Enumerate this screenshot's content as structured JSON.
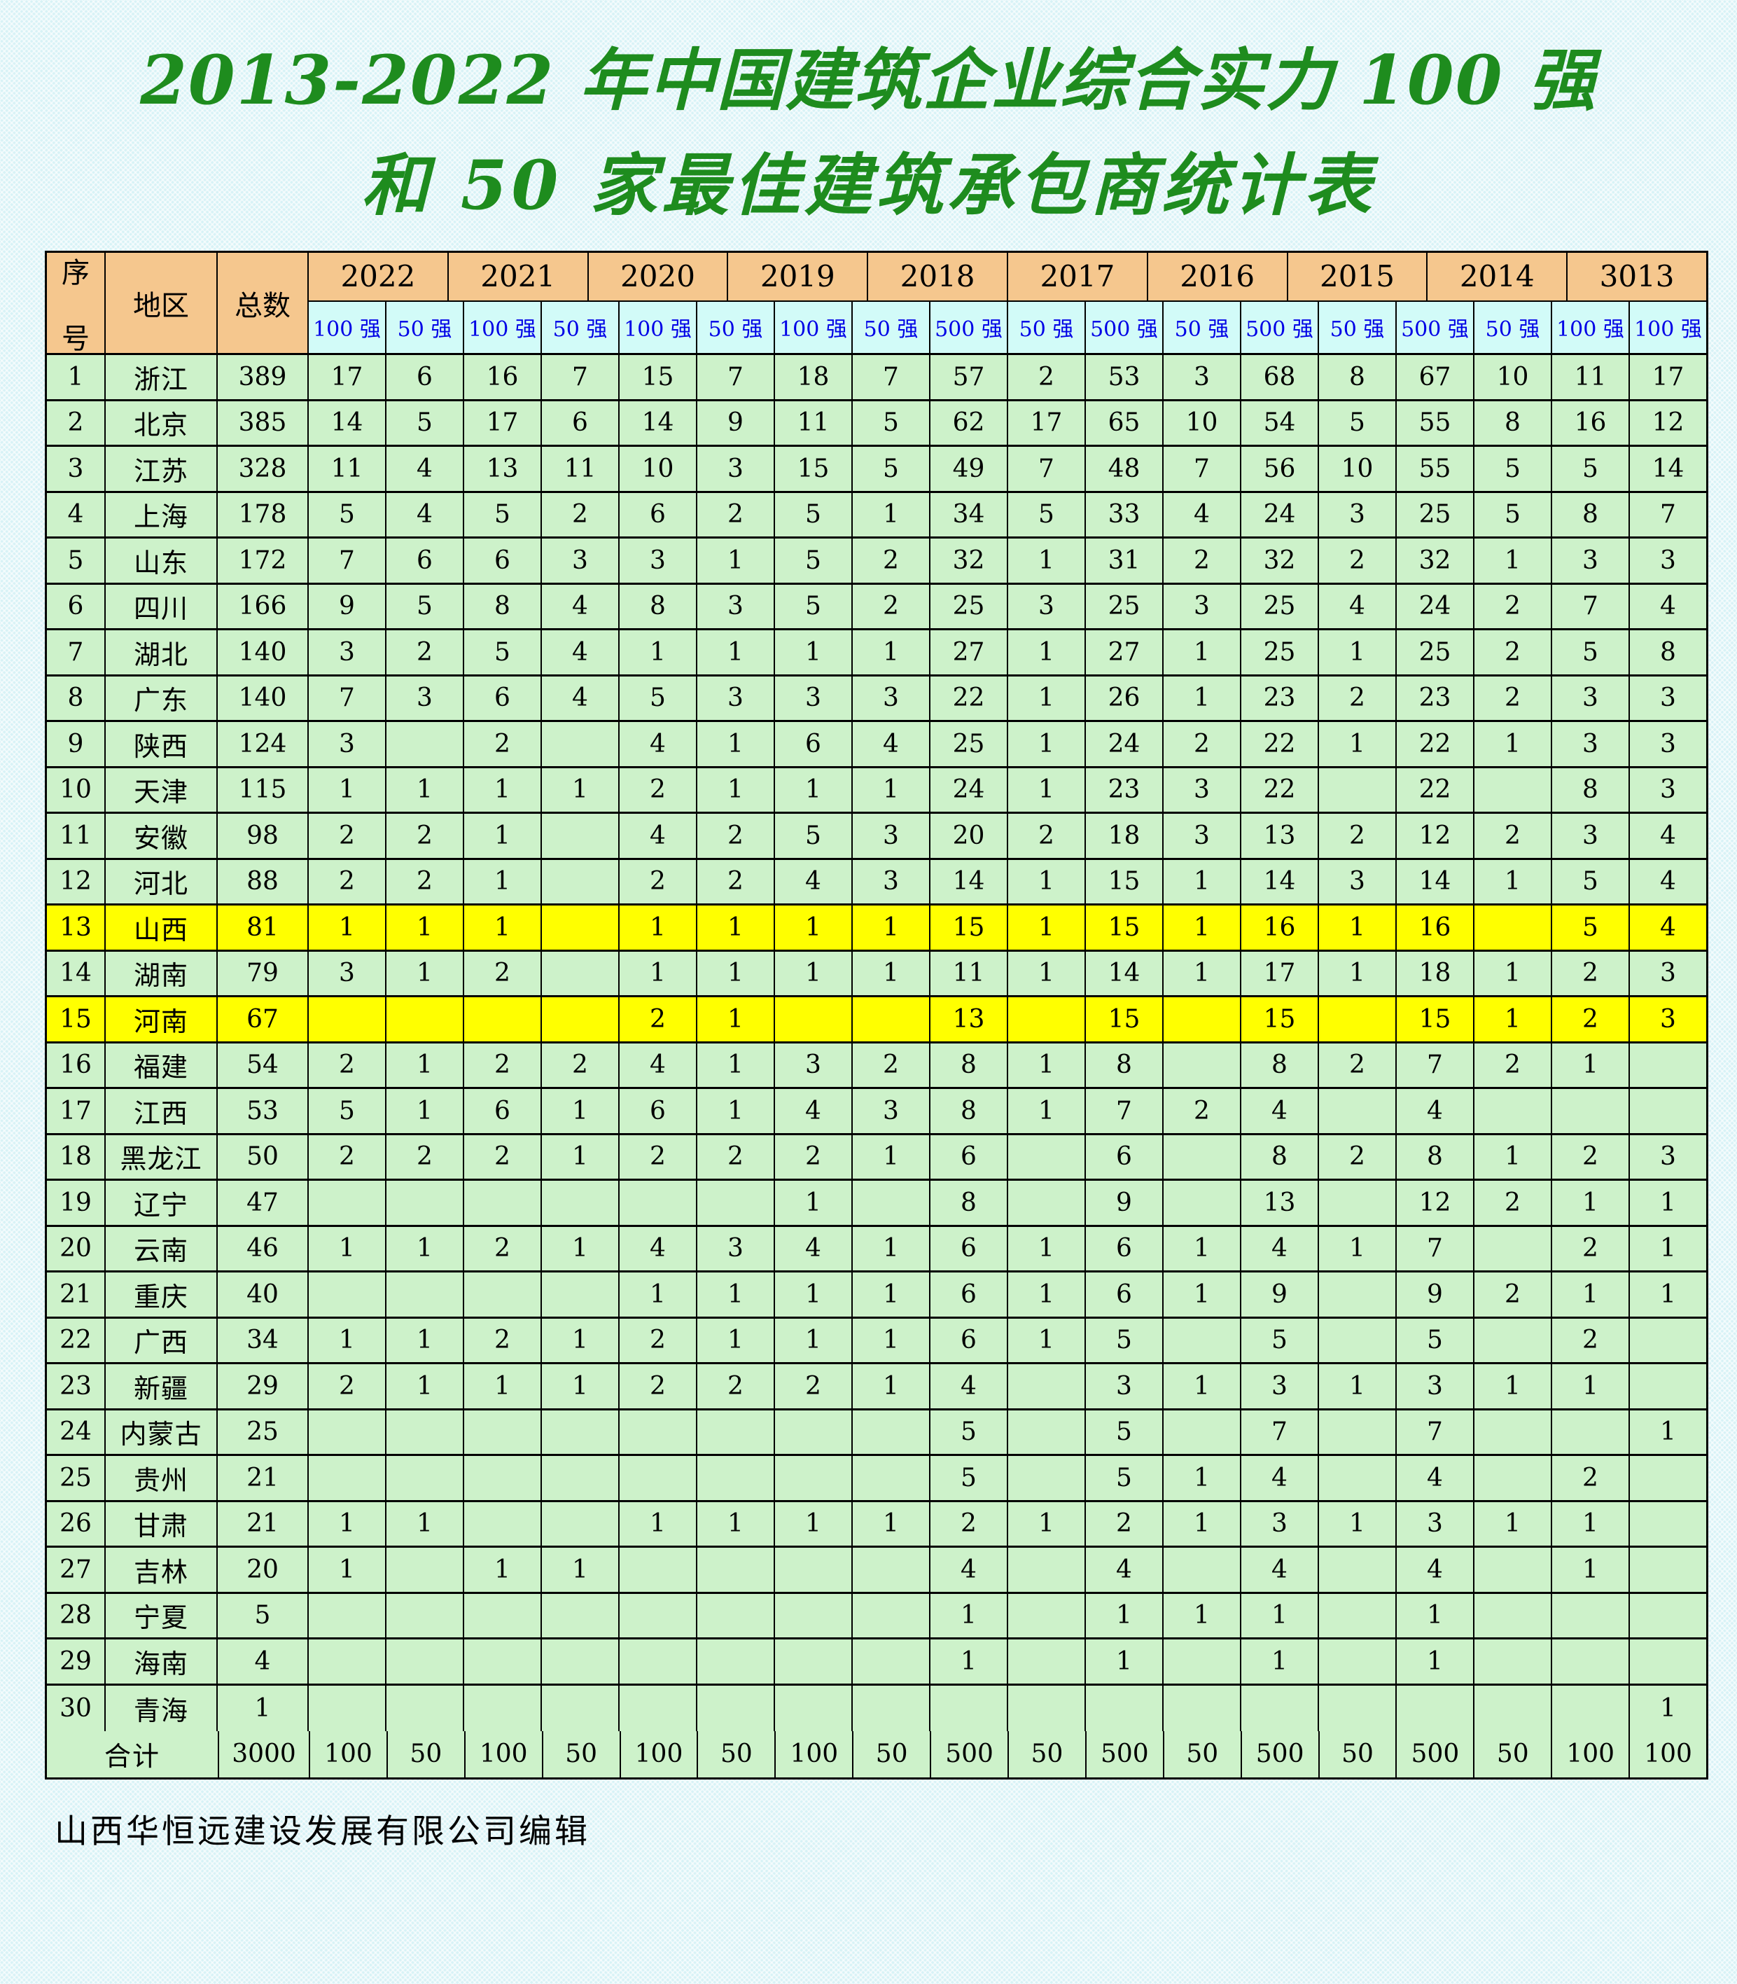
{
  "title": {
    "line1": "2013-2022 年中国建筑企业综合实力 100 强",
    "line2": "和 50 家最佳建筑承包商统计表"
  },
  "footer": "山西华恒远建设发展有限公司编辑",
  "colors": {
    "page_bg": "#d7f2f6",
    "header_bg": "#f5c78e",
    "subheader_bg": "#d2fbf8",
    "subheader_text": "#0000e6",
    "body_bg": "#cdf2ca",
    "highlight_bg": "#ffff00",
    "title_color": "#1e8c1e",
    "grid": "#000000"
  },
  "table": {
    "corner": {
      "seq_char1": "序",
      "seq_char2": "号",
      "region": "地区",
      "total": "总数"
    },
    "years": [
      "2022",
      "2021",
      "2020",
      "2019",
      "2018",
      "2017",
      "2016",
      "2015",
      "2014",
      "3013"
    ],
    "sub_headers": [
      "100 强",
      "50 强",
      "100 强",
      "50 强",
      "100 强",
      "50 强",
      "100 强",
      "50 强",
      "500 强",
      "50 强",
      "500 强",
      "50 强",
      "500 强",
      "50 强",
      "500 强",
      "50 强",
      "100 强",
      "100 强"
    ],
    "rows": [
      {
        "no": "1",
        "region": "浙江",
        "total": "389",
        "highlight": false,
        "values": [
          "17",
          "6",
          "16",
          "7",
          "15",
          "7",
          "18",
          "7",
          "57",
          "2",
          "53",
          "3",
          "68",
          "8",
          "67",
          "10",
          "11",
          "17"
        ]
      },
      {
        "no": "2",
        "region": "北京",
        "total": "385",
        "highlight": false,
        "values": [
          "14",
          "5",
          "17",
          "6",
          "14",
          "9",
          "11",
          "5",
          "62",
          "17",
          "65",
          "10",
          "54",
          "5",
          "55",
          "8",
          "16",
          "12"
        ]
      },
      {
        "no": "3",
        "region": "江苏",
        "total": "328",
        "highlight": false,
        "values": [
          "11",
          "4",
          "13",
          "11",
          "10",
          "3",
          "15",
          "5",
          "49",
          "7",
          "48",
          "7",
          "56",
          "10",
          "55",
          "5",
          "5",
          "14"
        ]
      },
      {
        "no": "4",
        "region": "上海",
        "total": "178",
        "highlight": false,
        "values": [
          "5",
          "4",
          "5",
          "2",
          "6",
          "2",
          "5",
          "1",
          "34",
          "5",
          "33",
          "4",
          "24",
          "3",
          "25",
          "5",
          "8",
          "7"
        ]
      },
      {
        "no": "5",
        "region": "山东",
        "total": "172",
        "highlight": false,
        "values": [
          "7",
          "6",
          "6",
          "3",
          "3",
          "1",
          "5",
          "2",
          "32",
          "1",
          "31",
          "2",
          "32",
          "2",
          "32",
          "1",
          "3",
          "3"
        ]
      },
      {
        "no": "6",
        "region": "四川",
        "total": "166",
        "highlight": false,
        "values": [
          "9",
          "5",
          "8",
          "4",
          "8",
          "3",
          "5",
          "2",
          "25",
          "3",
          "25",
          "3",
          "25",
          "4",
          "24",
          "2",
          "7",
          "4"
        ]
      },
      {
        "no": "7",
        "region": "湖北",
        "total": "140",
        "highlight": false,
        "values": [
          "3",
          "2",
          "5",
          "4",
          "1",
          "1",
          "1",
          "1",
          "27",
          "1",
          "27",
          "1",
          "25",
          "1",
          "25",
          "2",
          "5",
          "8"
        ]
      },
      {
        "no": "8",
        "region": "广东",
        "total": "140",
        "highlight": false,
        "values": [
          "7",
          "3",
          "6",
          "4",
          "5",
          "3",
          "3",
          "3",
          "22",
          "1",
          "26",
          "1",
          "23",
          "2",
          "23",
          "2",
          "3",
          "3"
        ]
      },
      {
        "no": "9",
        "region": "陕西",
        "total": "124",
        "highlight": false,
        "values": [
          "3",
          "",
          "2",
          "",
          "4",
          "1",
          "6",
          "4",
          "25",
          "1",
          "24",
          "2",
          "22",
          "1",
          "22",
          "1",
          "3",
          "3"
        ]
      },
      {
        "no": "10",
        "region": "天津",
        "total": "115",
        "highlight": false,
        "values": [
          "1",
          "1",
          "1",
          "1",
          "2",
          "1",
          "1",
          "1",
          "24",
          "1",
          "23",
          "3",
          "22",
          "",
          "22",
          "",
          "8",
          "3"
        ]
      },
      {
        "no": "11",
        "region": "安徽",
        "total": "98",
        "highlight": false,
        "values": [
          "2",
          "2",
          "1",
          "",
          "4",
          "2",
          "5",
          "3",
          "20",
          "2",
          "18",
          "3",
          "13",
          "2",
          "12",
          "2",
          "3",
          "4"
        ]
      },
      {
        "no": "12",
        "region": "河北",
        "total": "88",
        "highlight": false,
        "values": [
          "2",
          "2",
          "1",
          "",
          "2",
          "2",
          "4",
          "3",
          "14",
          "1",
          "15",
          "1",
          "14",
          "3",
          "14",
          "1",
          "5",
          "4"
        ]
      },
      {
        "no": "13",
        "region": "山西",
        "total": "81",
        "highlight": true,
        "values": [
          "1",
          "1",
          "1",
          "",
          "1",
          "1",
          "1",
          "1",
          "15",
          "1",
          "15",
          "1",
          "16",
          "1",
          "16",
          "",
          "5",
          "4"
        ]
      },
      {
        "no": "14",
        "region": "湖南",
        "total": "79",
        "highlight": false,
        "values": [
          "3",
          "1",
          "2",
          "",
          "1",
          "1",
          "1",
          "1",
          "11",
          "1",
          "14",
          "1",
          "17",
          "1",
          "18",
          "1",
          "2",
          "3"
        ]
      },
      {
        "no": "15",
        "region": "河南",
        "total": "67",
        "highlight": true,
        "values": [
          "",
          "",
          "",
          "",
          "2",
          "1",
          "",
          "",
          "13",
          "",
          "15",
          "",
          "15",
          "",
          "15",
          "1",
          "2",
          "3"
        ]
      },
      {
        "no": "16",
        "region": "福建",
        "total": "54",
        "highlight": false,
        "values": [
          "2",
          "1",
          "2",
          "2",
          "4",
          "1",
          "3",
          "2",
          "8",
          "1",
          "8",
          "",
          "8",
          "2",
          "7",
          "2",
          "1",
          ""
        ]
      },
      {
        "no": "17",
        "region": "江西",
        "total": "53",
        "highlight": false,
        "values": [
          "5",
          "1",
          "6",
          "1",
          "6",
          "1",
          "4",
          "3",
          "8",
          "1",
          "7",
          "2",
          "4",
          "",
          "4",
          "",
          "",
          ""
        ]
      },
      {
        "no": "18",
        "region": "黑龙江",
        "total": "50",
        "highlight": false,
        "values": [
          "2",
          "2",
          "2",
          "1",
          "2",
          "2",
          "2",
          "1",
          "6",
          "",
          "6",
          "",
          "8",
          "2",
          "8",
          "1",
          "2",
          "3"
        ]
      },
      {
        "no": "19",
        "region": "辽宁",
        "total": "47",
        "highlight": false,
        "values": [
          "",
          "",
          "",
          "",
          "",
          "",
          "1",
          "",
          "8",
          "",
          "9",
          "",
          "13",
          "",
          "12",
          "2",
          "1",
          "1"
        ]
      },
      {
        "no": "20",
        "region": "云南",
        "total": "46",
        "highlight": false,
        "values": [
          "1",
          "1",
          "2",
          "1",
          "4",
          "3",
          "4",
          "1",
          "6",
          "1",
          "6",
          "1",
          "4",
          "1",
          "7",
          "",
          "2",
          "1"
        ]
      },
      {
        "no": "21",
        "region": "重庆",
        "total": "40",
        "highlight": false,
        "values": [
          "",
          "",
          "",
          "",
          "1",
          "1",
          "1",
          "1",
          "6",
          "1",
          "6",
          "1",
          "9",
          "",
          "9",
          "2",
          "1",
          "1"
        ]
      },
      {
        "no": "22",
        "region": "广西",
        "total": "34",
        "highlight": false,
        "values": [
          "1",
          "1",
          "2",
          "1",
          "2",
          "1",
          "1",
          "1",
          "6",
          "1",
          "5",
          "",
          "5",
          "",
          "5",
          "",
          "2",
          ""
        ]
      },
      {
        "no": "23",
        "region": "新疆",
        "total": "29",
        "highlight": false,
        "values": [
          "2",
          "1",
          "1",
          "1",
          "2",
          "2",
          "2",
          "1",
          "4",
          "",
          "3",
          "1",
          "3",
          "1",
          "3",
          "1",
          "1",
          ""
        ]
      },
      {
        "no": "24",
        "region": "内蒙古",
        "total": "25",
        "highlight": false,
        "values": [
          "",
          "",
          "",
          "",
          "",
          "",
          "",
          "",
          "5",
          "",
          "5",
          "",
          "7",
          "",
          "7",
          "",
          "",
          "1"
        ]
      },
      {
        "no": "25",
        "region": "贵州",
        "total": "21",
        "highlight": false,
        "values": [
          "",
          "",
          "",
          "",
          "",
          "",
          "",
          "",
          "5",
          "",
          "5",
          "1",
          "4",
          "",
          "4",
          "",
          "2",
          ""
        ]
      },
      {
        "no": "26",
        "region": "甘肃",
        "total": "21",
        "highlight": false,
        "values": [
          "1",
          "1",
          "",
          "",
          "1",
          "1",
          "1",
          "1",
          "2",
          "1",
          "2",
          "1",
          "3",
          "1",
          "3",
          "1",
          "1",
          ""
        ]
      },
      {
        "no": "27",
        "region": "吉林",
        "total": "20",
        "highlight": false,
        "values": [
          "1",
          "",
          "1",
          "1",
          "",
          "",
          "",
          "",
          "4",
          "",
          "4",
          "",
          "4",
          "",
          "4",
          "",
          "1",
          ""
        ]
      },
      {
        "no": "28",
        "region": "宁夏",
        "total": "5",
        "highlight": false,
        "values": [
          "",
          "",
          "",
          "",
          "",
          "",
          "",
          "",
          "1",
          "",
          "1",
          "1",
          "1",
          "",
          "1",
          "",
          "",
          ""
        ]
      },
      {
        "no": "29",
        "region": "海南",
        "total": "4",
        "highlight": false,
        "values": [
          "",
          "",
          "",
          "",
          "",
          "",
          "",
          "",
          "1",
          "",
          "1",
          "",
          "1",
          "",
          "1",
          "",
          "",
          ""
        ]
      },
      {
        "no": "30",
        "region": "青海",
        "total": "1",
        "highlight": false,
        "values": [
          "",
          "",
          "",
          "",
          "",
          "",
          "",
          "",
          "",
          "",
          "",
          "",
          "",
          "",
          "",
          "",
          "",
          "1"
        ]
      }
    ],
    "total_row": {
      "label": "合计",
      "total": "3000",
      "values": [
        "100",
        "50",
        "100",
        "50",
        "100",
        "50",
        "100",
        "50",
        "500",
        "50",
        "500",
        "50",
        "500",
        "50",
        "500",
        "50",
        "100",
        "100"
      ]
    }
  }
}
